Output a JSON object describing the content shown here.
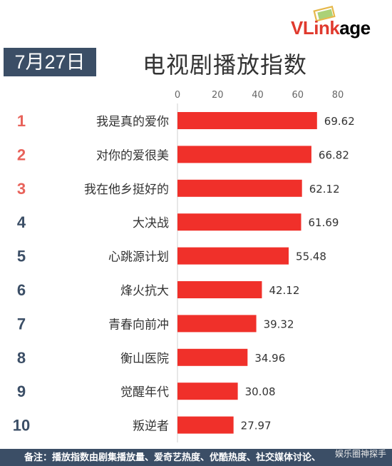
{
  "brand": {
    "logo_text": "VLinkage",
    "logo_v": "V",
    "logo_rest": "Link",
    "logo_tail": "age",
    "color": "#e03a2e"
  },
  "badge": {
    "date": "7月27日",
    "color": "#3b4e66"
  },
  "footer": {
    "note": "备注：播放指数由剧集播放量、爱奇艺热度、优酷热度、社交媒体讨论、",
    "watermark": "娱乐圈神探手"
  },
  "rank_colors": {
    "top3": "#e8625a",
    "rest": "#3b4e66"
  },
  "bar_color": "#f0302a",
  "chart_data": {
    "type": "bar",
    "orientation": "horizontal",
    "title": "电视剧播放指数",
    "xlabel": "",
    "ylabel": "",
    "xlim": [
      0,
      80
    ],
    "x_ticks": [
      0,
      20,
      40,
      60,
      80
    ],
    "grid": false,
    "ranks": [
      "1",
      "2",
      "3",
      "4",
      "5",
      "6",
      "7",
      "8",
      "9",
      "10"
    ],
    "categories": [
      "我是真的爱你",
      "对你的爱很美",
      "我在他乡挺好的",
      "大决战",
      "心跳源计划",
      "烽火抗大",
      "青春向前冲",
      "衡山医院",
      "觉醒年代",
      "叛逆者"
    ],
    "values": [
      69.62,
      66.82,
      62.12,
      61.69,
      55.48,
      42.12,
      39.32,
      34.96,
      30.08,
      27.97
    ],
    "value_labels": [
      "69.62",
      "66.82",
      "62.12",
      "61.69",
      "55.48",
      "42.12",
      "39.32",
      "34.96",
      "30.08",
      "27.97"
    ]
  }
}
